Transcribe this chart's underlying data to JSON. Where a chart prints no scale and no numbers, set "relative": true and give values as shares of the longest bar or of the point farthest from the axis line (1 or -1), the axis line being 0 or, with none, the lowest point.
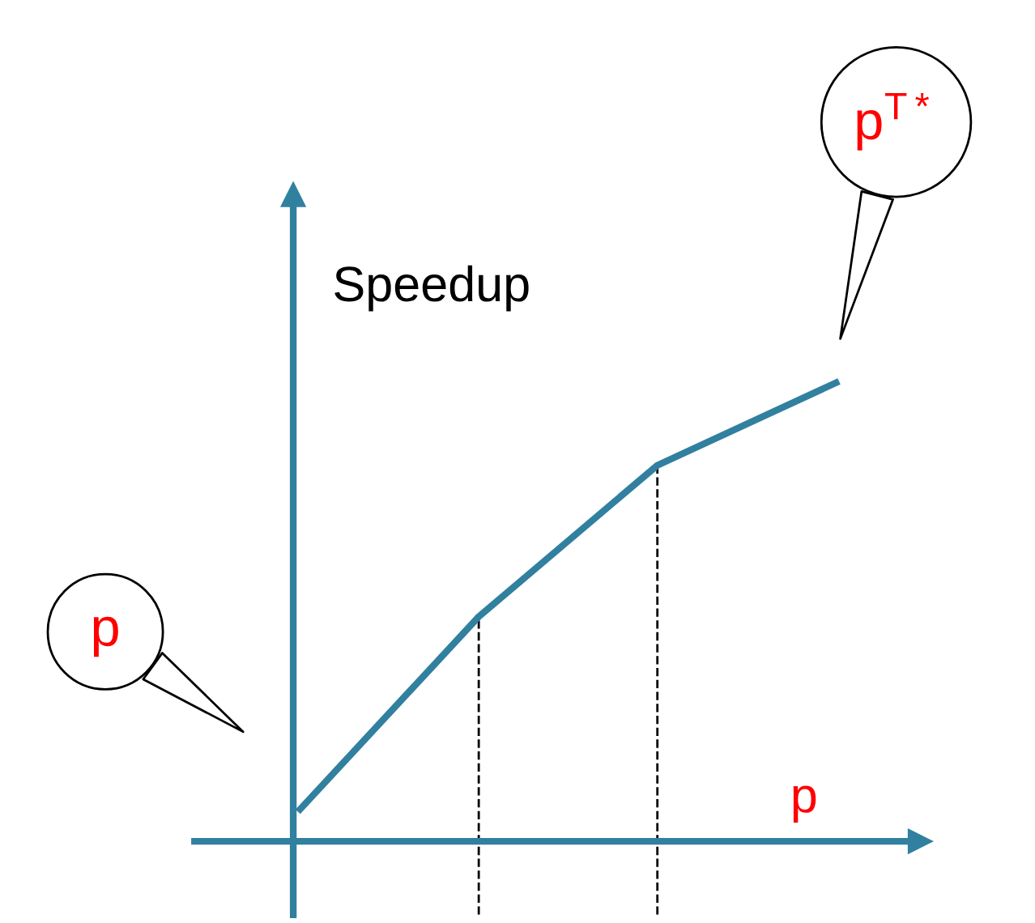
{
  "chart_data": {
    "type": "line",
    "relative": true,
    "ylabel": "Speedup",
    "xlabel": "p",
    "categories": [
      null,
      null,
      null,
      null
    ],
    "series": [
      {
        "color": "#31809f",
        "values": [
          0.07,
          0.49,
          0.82,
          1.0
        ]
      }
    ],
    "annotations": [
      "p",
      "p$^{T*}$"
    ],
    "grid": false,
    "legend": false,
    "marker": "none",
    "line_style": "solid"
  }
}
